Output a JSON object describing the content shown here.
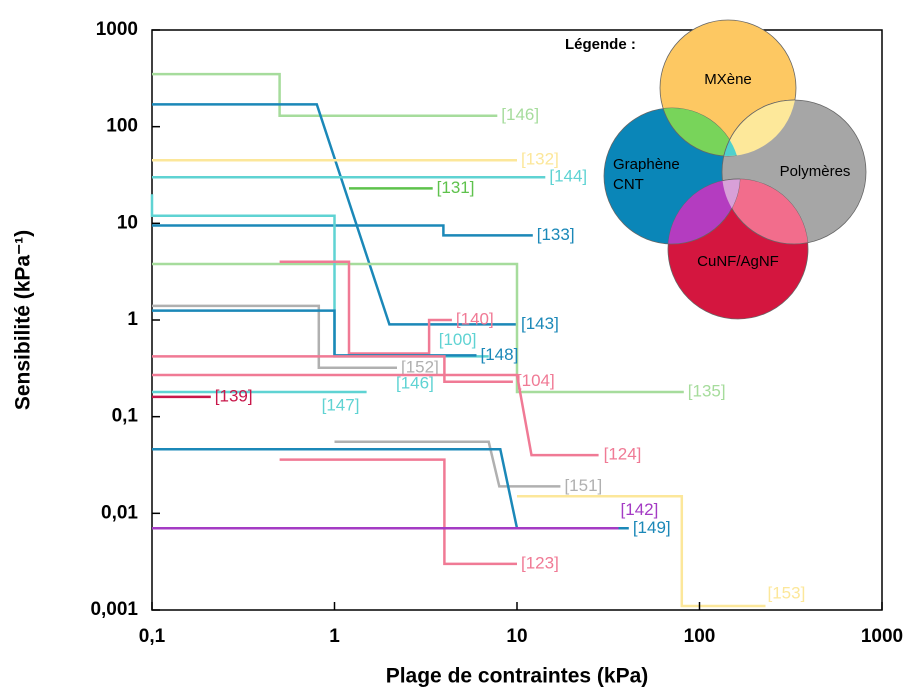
{
  "chart_data": {
    "type": "line",
    "xlabel": "Plage de contraintes (kPa)",
    "ylabel": "Sensibilité (kPa⁻¹)",
    "xscale": "log",
    "yscale": "log",
    "xlim": [
      0.1,
      1000
    ],
    "ylim": [
      0.001,
      1000
    ],
    "xticks": [
      {
        "value": 0.1,
        "label": "0,1"
      },
      1,
      10,
      100,
      1000
    ],
    "yticks": [
      {
        "value": 0.001,
        "label": "0,001"
      },
      {
        "value": 0.01,
        "label": "0,01"
      },
      {
        "value": 0.1,
        "label": "0,1"
      },
      1,
      10,
      100,
      1000
    ],
    "series": [
      {
        "name": "[146]",
        "color": "#a6dc9c",
        "x": [
          0.1,
          0.5,
          0.5,
          7.8
        ],
        "values": [
          350,
          350,
          130,
          130
        ]
      },
      {
        "name": "[143]",
        "color": "#1b88b8",
        "x": [
          0.1,
          0.8,
          2,
          10
        ],
        "values": [
          170,
          170,
          0.9,
          0.9
        ]
      },
      {
        "name": "[132]",
        "color": "#fce79a",
        "x": [
          0.1,
          10
        ],
        "values": [
          45,
          45
        ]
      },
      {
        "name": "[144]",
        "color": "#5fd3d3",
        "x": [
          0.1,
          14.3
        ],
        "values": [
          30,
          30
        ]
      },
      {
        "name": "[131]",
        "color": "#5ec24c",
        "x": [
          1.2,
          3.45
        ],
        "values": [
          23,
          23
        ]
      },
      {
        "name": "[133]",
        "color": "#1b88b8",
        "x": [
          0.1,
          3.95,
          3.95,
          12.2
        ],
        "values": [
          9.5,
          9.5,
          7.5,
          7.5
        ]
      },
      {
        "name": "[135]",
        "color": "#a6dc9c",
        "x": [
          0.1,
          10,
          10,
          82
        ],
        "values": [
          3.8,
          3.8,
          0.18,
          0.18
        ]
      },
      {
        "name": "[100]",
        "color": "#5fd3d3",
        "x": [
          0.1,
          0.1,
          1,
          1,
          7
        ],
        "values": [
          20,
          12,
          12,
          0.42,
          0.42
        ]
      },
      {
        "name": "[140]",
        "color": "#f07a95",
        "x": [
          0.5,
          1.2,
          1.2,
          3.3,
          3.3,
          4.4
        ],
        "values": [
          4,
          4,
          0.45,
          0.45,
          1,
          1
        ]
      },
      {
        "name": "[152]",
        "color": "#b0b0b0",
        "x": [
          0.1,
          0.82,
          0.82,
          2.2
        ],
        "values": [
          1.4,
          1.4,
          0.32,
          0.32
        ]
      },
      {
        "name": "[148]",
        "color": "#1b88b8",
        "x": [
          0.1,
          1,
          1,
          6
        ],
        "values": [
          1.25,
          1.25,
          0.43,
          0.43
        ]
      },
      {
        "name": "[104]",
        "color": "#f07a95",
        "x": [
          0.1,
          4,
          4,
          9.5
        ],
        "values": [
          0.42,
          0.42,
          0.23,
          0.23
        ]
      },
      {
        "name": "[124]",
        "color": "#f07a95",
        "x": [
          0.1,
          10,
          12,
          28
        ],
        "values": [
          0.27,
          0.27,
          0.04,
          0.04
        ]
      },
      {
        "name": "[147]",
        "color": "#5fd3d3",
        "x": [
          0.1,
          1.5
        ],
        "values": [
          0.18,
          0.18
        ]
      },
      {
        "name": "[139]",
        "color": "#c8174a",
        "x": [
          0.1,
          0.21
        ],
        "values": [
          0.16,
          0.16
        ]
      },
      {
        "name": "[151]",
        "color": "#b0b0b0",
        "x": [
          1,
          7,
          8,
          17.3
        ],
        "values": [
          0.055,
          0.055,
          0.019,
          0.019
        ]
      },
      {
        "name": "[149]",
        "color": "#1b88b8",
        "x": [
          0.1,
          8.1,
          10,
          41
        ],
        "values": [
          0.046,
          0.046,
          0.007,
          0.007
        ]
      },
      {
        "name": "[123]",
        "color": "#f07a95",
        "x": [
          0.5,
          4,
          4,
          10
        ],
        "values": [
          0.036,
          0.036,
          0.003,
          0.003
        ]
      },
      {
        "name": "[153]",
        "color": "#fce79a",
        "x": [
          10,
          80,
          80,
          230
        ],
        "values": [
          0.015,
          0.015,
          0.0011,
          0.0011
        ]
      },
      {
        "name": "[142]",
        "color": "#a43bc4",
        "x": [
          0.1,
          36
        ],
        "values": [
          0.007,
          0.007
        ]
      }
    ],
    "annotations": [
      {
        "text": "[146]",
        "color": "#5fd3d3"
      }
    ],
    "legend_title": "Légende :",
    "legend_groups": [
      {
        "label": [
          "MXène"
        ],
        "color": "#fdc862"
      },
      {
        "label": [
          "Graphène",
          "CNT"
        ],
        "color": "#0a86b8"
      },
      {
        "label": [
          "Polymères"
        ],
        "color": "#a6a6a6"
      },
      {
        "label": [
          "CuNF/AgNF"
        ],
        "color": "#d4163f"
      }
    ]
  }
}
